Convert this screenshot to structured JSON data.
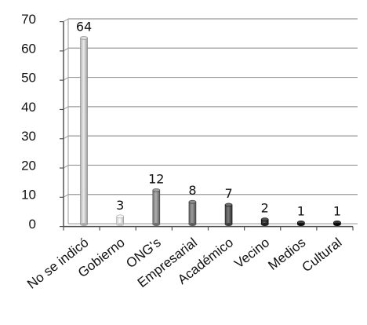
{
  "chart_data": {
    "type": "bar",
    "title": "",
    "xlabel": "",
    "ylabel": "",
    "categories": [
      "No se indicó",
      "Gobierno",
      "ONG's",
      "Empresarial",
      "Académico",
      "Vecino",
      "Medios",
      "Cultural"
    ],
    "values": [
      64,
      3,
      12,
      8,
      7,
      2,
      1,
      1
    ],
    "data_labels": [
      "64",
      "3",
      "12",
      "8",
      "7",
      "2",
      "1",
      "1"
    ],
    "ylim": [
      0,
      70
    ],
    "yticks": [
      "0",
      "10",
      "20",
      "30",
      "40",
      "50",
      "60",
      "70"
    ],
    "grid": true,
    "legend": "none",
    "bar_colors": [
      "#c8c8c8",
      "#e4e4e4",
      "#8c8c8c",
      "#7a7a7a",
      "#5a5a5a",
      "#3e3e3e",
      "#2e2e2e",
      "#262626"
    ],
    "gridline_color": "#9a9a9a",
    "axis_color": "#555555"
  }
}
